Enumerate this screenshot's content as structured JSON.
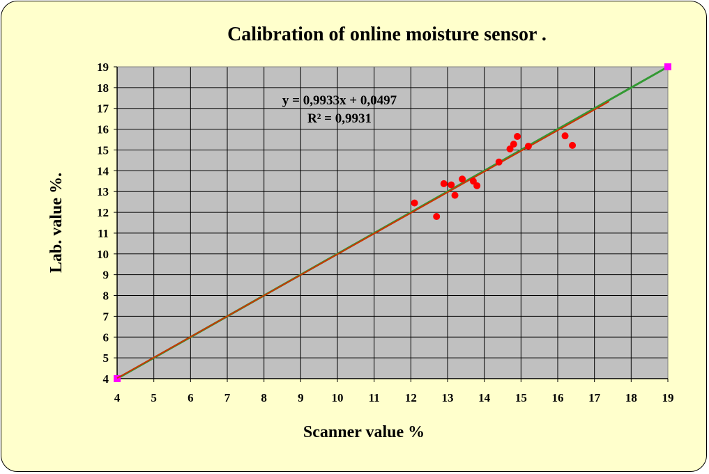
{
  "chart_data": {
    "type": "scatter",
    "title": "Calibration of online moisture sensor .",
    "xlabel": "Scanner value  %",
    "ylabel": "Lab. value   %.",
    "xlim": [
      4,
      19
    ],
    "ylim": [
      4,
      19
    ],
    "x_ticks": [
      "4",
      "5",
      "6",
      "7",
      "8",
      "9",
      "10",
      "11",
      "12",
      "13",
      "14",
      "15",
      "16",
      "17",
      "18",
      "19"
    ],
    "y_ticks": [
      "4",
      "5",
      "6",
      "7",
      "8",
      "9",
      "10",
      "11",
      "12",
      "13",
      "14",
      "15",
      "16",
      "17",
      "18",
      "19"
    ],
    "grid": true,
    "legend": "none",
    "series": [
      {
        "kind": "points",
        "color": "#ff0000",
        "points": [
          [
            12.1,
            12.45
          ],
          [
            12.7,
            11.8
          ],
          [
            12.9,
            13.38
          ],
          [
            13.1,
            13.32
          ],
          [
            13.2,
            12.82
          ],
          [
            13.4,
            13.6
          ],
          [
            13.7,
            13.5
          ],
          [
            13.8,
            13.28
          ],
          [
            14.4,
            14.42
          ],
          [
            14.7,
            15.05
          ],
          [
            14.8,
            15.28
          ],
          [
            14.9,
            15.65
          ],
          [
            15.2,
            15.18
          ],
          [
            16.2,
            15.68
          ],
          [
            16.4,
            15.22
          ]
        ]
      },
      {
        "kind": "reference-line",
        "color": "#339933",
        "marker_color": "#ff00ff",
        "points": [
          [
            4,
            4
          ],
          [
            19,
            19
          ]
        ]
      },
      {
        "kind": "trendline",
        "color": "#cc3300",
        "slope": 0.9933,
        "intercept": 0.0497,
        "x_range": [
          4,
          17.4
        ]
      }
    ],
    "annotations": {
      "equation": "y = 0,9933x + 0,0497",
      "r_squared": "R² = 0,9931"
    },
    "colors": {
      "plot_background": "#c0c0c0",
      "chart_background": "#ffffcc",
      "gridline": "#000000"
    }
  }
}
